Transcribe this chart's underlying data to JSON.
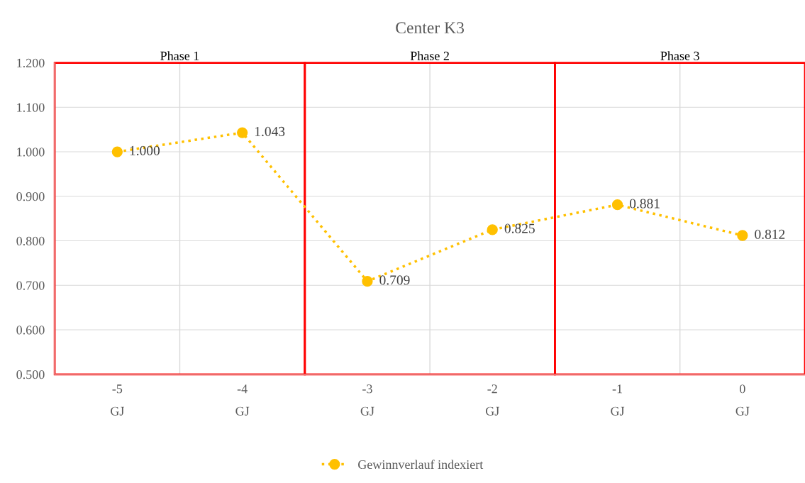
{
  "chart_data": {
    "type": "line",
    "title": "Center K3",
    "categories": [
      "-5\nGJ",
      "-4\nGJ",
      "-3\nGJ",
      "-2\nGJ",
      "-1\nGJ",
      "0\nGJ"
    ],
    "series": [
      {
        "name": "Gewinnverlauf indexiert",
        "color": "#ffc000",
        "values": [
          1.0,
          1.043,
          0.709,
          0.825,
          0.881,
          0.812
        ],
        "value_labels": [
          "1.000",
          "1.043",
          "0.709",
          "0.825",
          "0.881",
          "0.812"
        ]
      }
    ],
    "ylim": [
      0.5,
      1.2
    ],
    "yticks": [
      {
        "value": 0.5,
        "label": "0.500"
      },
      {
        "value": 0.6,
        "label": "0.600"
      },
      {
        "value": 0.7,
        "label": "0.700"
      },
      {
        "value": 0.8,
        "label": "0.800"
      },
      {
        "value": 0.9,
        "label": "0.900"
      },
      {
        "value": 1.0,
        "label": "1.000"
      },
      {
        "value": 1.1,
        "label": "1.100"
      },
      {
        "value": 1.2,
        "label": "1.200"
      }
    ],
    "annotations": [
      "Phase 1",
      "Phase 2",
      "Phase 3"
    ],
    "grid": true,
    "legend": "bottom",
    "marker": "circle",
    "line_style": "dotted"
  }
}
